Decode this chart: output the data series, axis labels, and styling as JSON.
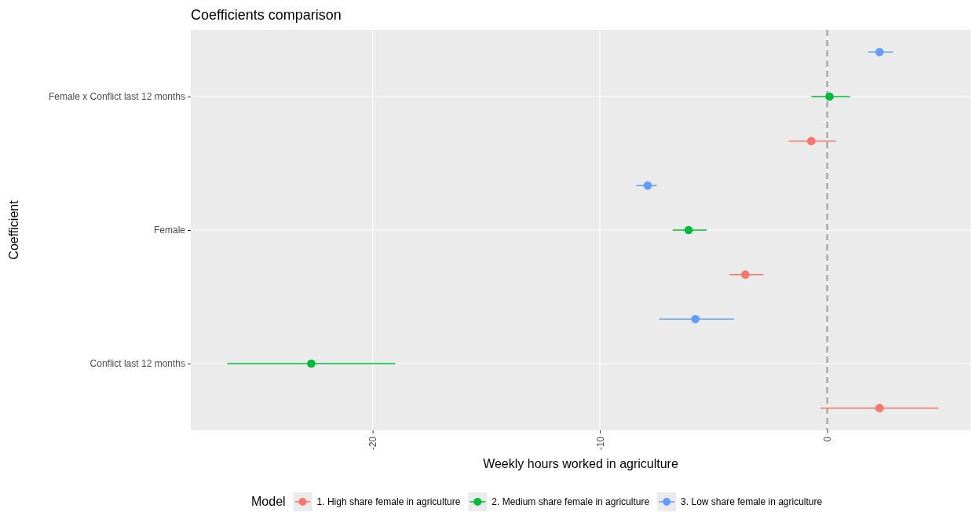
{
  "chart_data": {
    "type": "scatter",
    "orientation": "horizontal",
    "title": "Coefficients comparison",
    "xlabel": "Weekly hours worked in agriculture",
    "ylabel": "Coefficient",
    "legend_title": "Model",
    "categories": [
      "Female x Conflict last 12 months",
      "Female",
      "Conflict last 12 months"
    ],
    "series": [
      {
        "name": "1. High share female in agriculture",
        "color": "#f8766d",
        "values": [
          -0.7,
          -3.6,
          2.3
        ],
        "errors": [
          [
            -1.7,
            0.4
          ],
          [
            -4.3,
            -2.8
          ],
          [
            -0.3,
            4.9
          ]
        ]
      },
      {
        "name": "2. Medium share female in agriculture",
        "color": "#00ba38",
        "values": [
          0.1,
          -6.1,
          -22.7
        ],
        "errors": [
          [
            -0.7,
            1.0
          ],
          [
            -6.8,
            -5.3
          ],
          [
            -26.4,
            -19.0
          ]
        ]
      },
      {
        "name": "3. Low share female in agriculture",
        "color": "#619cff",
        "values": [
          2.3,
          -7.9,
          -5.8
        ],
        "errors": [
          [
            1.8,
            2.9
          ],
          [
            -8.4,
            -7.5
          ],
          [
            -7.4,
            -4.1
          ]
        ]
      }
    ],
    "xlim": [
      -28,
      6.3
    ],
    "xticks": [
      -20,
      -10,
      0
    ],
    "ref_lines": [
      {
        "axis": "x",
        "value": 0,
        "color": "#aaaaaa",
        "line_style": "dashed"
      }
    ],
    "grid": true,
    "legend": "bottom",
    "marker": "circle"
  }
}
